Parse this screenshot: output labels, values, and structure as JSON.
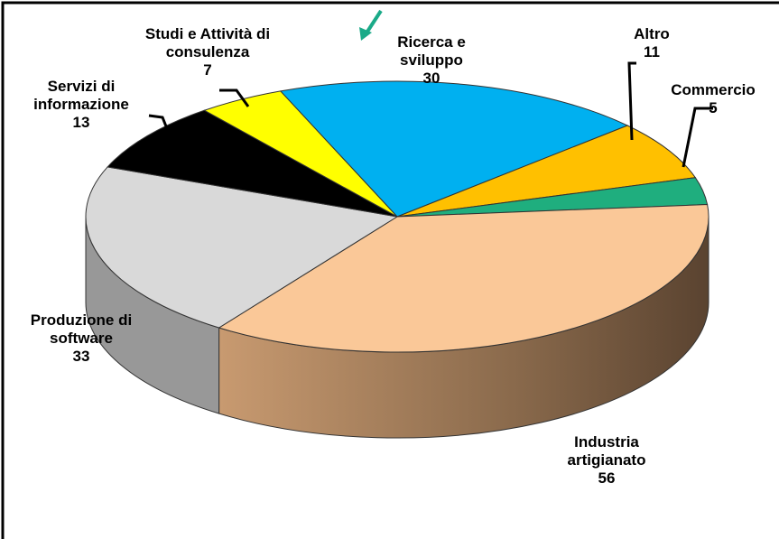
{
  "chart_data": {
    "type": "pie3d",
    "categories": [
      "Ricerca e sviluppo",
      "Altro",
      "Commercio",
      "Industria artigianato",
      "Produzione di software",
      "Servizi di informazione",
      "Studi e Attività di consulenza"
    ],
    "values": [
      30,
      11,
      5,
      56,
      33,
      13,
      7
    ],
    "colors": [
      "#00b0f0",
      "#ffc000",
      "#1fae7e",
      "#fac898",
      "#d9d9d9",
      "#000000",
      "#ffff00"
    ]
  }
}
